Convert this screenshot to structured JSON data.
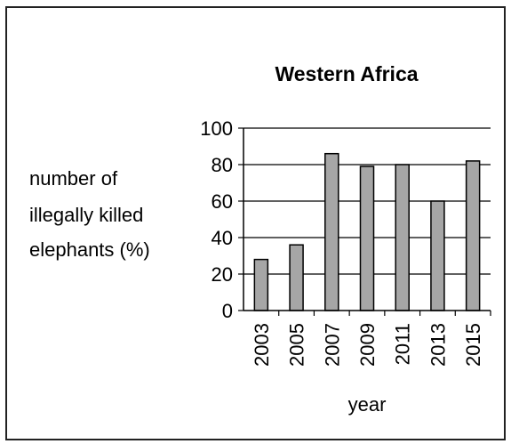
{
  "chart_data": {
    "type": "bar",
    "title": "Western Africa",
    "ylabel_lines": [
      "number of",
      "illegally killed",
      "elephants (%)"
    ],
    "xlabel": "year",
    "categories": [
      "2003",
      "2005",
      "2007",
      "2009",
      "2011",
      "2013",
      "2015"
    ],
    "values": [
      28,
      36,
      86,
      79,
      80,
      60,
      82
    ],
    "ylim": [
      0,
      100
    ],
    "yticks": [
      "0",
      "20",
      "40",
      "60",
      "80",
      "100"
    ],
    "grid": true,
    "legend": "none",
    "bar_color": "#a6a6a6"
  }
}
